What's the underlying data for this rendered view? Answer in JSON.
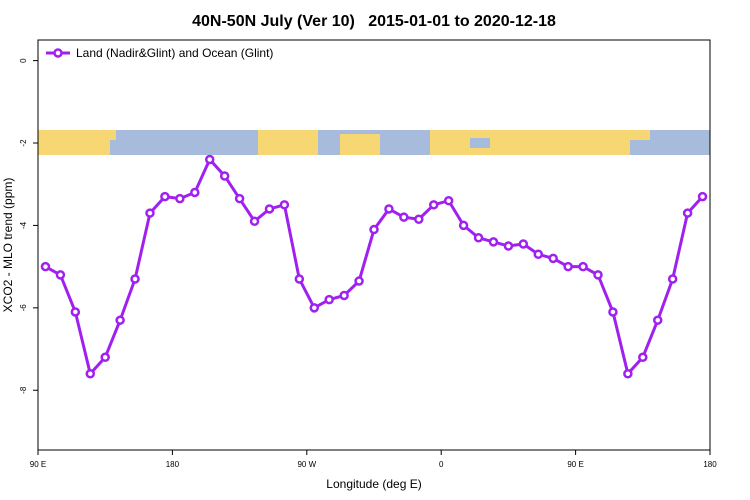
{
  "chart_data": {
    "type": "line",
    "title": "40N-50N July (Ver 10)   2015-01-01 to 2020-12-18",
    "x_label": "Longitude (deg E)",
    "y_label": "XCO2 - MLO trend (ppm)",
    "x": [
      95,
      105,
      115,
      125,
      135,
      145,
      155,
      165,
      175,
      185,
      195,
      205,
      215,
      225,
      235,
      245,
      255,
      265,
      275,
      285,
      295,
      305,
      315,
      325,
      335,
      345,
      355,
      365,
      375,
      385,
      395,
      405,
      415,
      425,
      435,
      445,
      455,
      465,
      475,
      485,
      495,
      505,
      515,
      525,
      535
    ],
    "series": [
      {
        "name": "Land (Nadir&Glint) and Ocean (Glint)",
        "color": "#a020f0",
        "values": [
          -5.0,
          -5.2,
          -6.1,
          -7.6,
          -7.2,
          -6.3,
          -5.3,
          -3.7,
          -3.3,
          -3.35,
          -3.2,
          -2.4,
          -2.8,
          -3.35,
          -3.9,
          -3.6,
          -3.5,
          -5.3,
          -6.0,
          -5.8,
          -5.7,
          -5.35,
          -4.1,
          -3.6,
          -3.8,
          -3.85,
          -3.5,
          -3.4,
          -4.0,
          -4.3,
          -4.4,
          -4.5,
          -4.45,
          -4.7,
          -4.8,
          -5.0,
          -5.0,
          -5.2,
          -6.1,
          -7.6,
          -7.2,
          -6.3,
          -5.3,
          -3.7,
          -3.3
        ]
      }
    ],
    "xlim": [
      90,
      540
    ],
    "xticks": [
      {
        "value": 90,
        "label": "90 E"
      },
      {
        "value": 180,
        "label": "180"
      },
      {
        "value": 270,
        "label": "90 W"
      },
      {
        "value": 360,
        "label": "0"
      },
      {
        "value": 450,
        "label": "90 E"
      },
      {
        "value": 540,
        "label": "180"
      }
    ],
    "ylim": [
      -9.45,
      0.5
    ],
    "yticks": [
      0,
      -2,
      -4,
      -6,
      -8
    ],
    "legend": "top-left"
  }
}
